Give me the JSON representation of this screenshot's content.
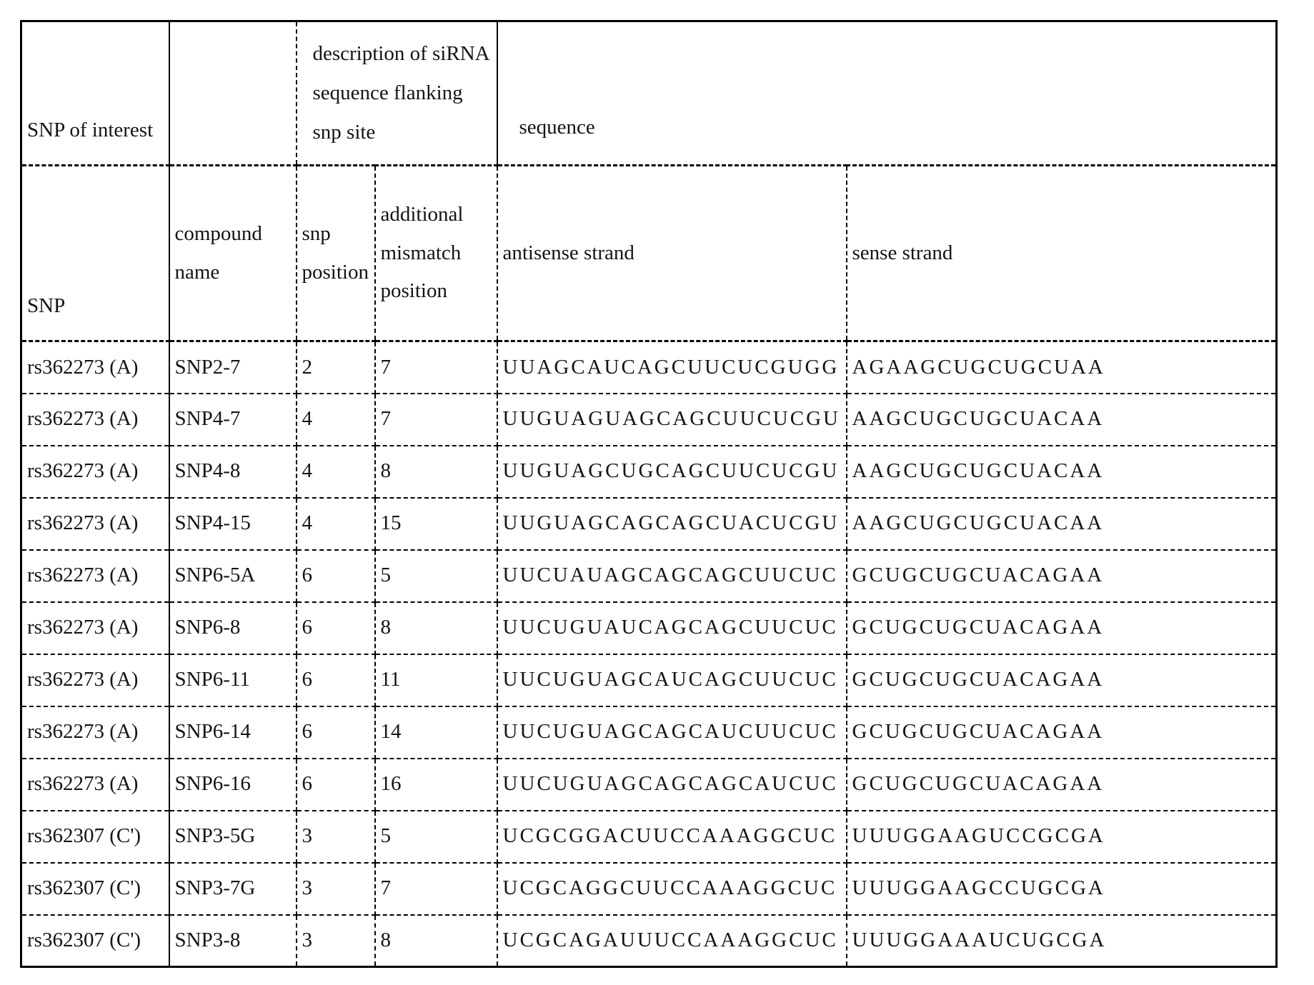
{
  "table": {
    "header_row1": {
      "snp_of_interest": "SNP of interest",
      "description": "description of siRNA sequence flanking snp site",
      "sequence": "sequence"
    },
    "header_row2": {
      "snp": "SNP",
      "compound_name": "compound name",
      "snp_position": "snp position",
      "additional_mismatch_position": "additional mismatch position",
      "antisense_strand": "antisense strand",
      "sense_strand": "sense strand"
    },
    "rows": [
      {
        "snp": "rs362273 (A)",
        "compound": "SNP2-7",
        "snp_pos": "2",
        "mismatch_pos": "7",
        "antisense": "UUAGCAUCAGCUUCUCGUGG",
        "sense": "AGAAGCUGCUGCUAA"
      },
      {
        "snp": "rs362273 (A)",
        "compound": "SNP4-7",
        "snp_pos": "4",
        "mismatch_pos": "7",
        "antisense": "UUGUAGUAGCAGCUUCUCGU",
        "sense": "AAGCUGCUGCUACAA"
      },
      {
        "snp": "rs362273 (A)",
        "compound": "SNP4-8",
        "snp_pos": "4",
        "mismatch_pos": "8",
        "antisense": "UUGUAGCUGCAGCUUCUCGU",
        "sense": "AAGCUGCUGCUACAA"
      },
      {
        "snp": "rs362273 (A)",
        "compound": "SNP4-15",
        "snp_pos": "4",
        "mismatch_pos": "15",
        "antisense": "UUGUAGCAGCAGCUACUCGU",
        "sense": "AAGCUGCUGCUACAA"
      },
      {
        "snp": "rs362273 (A)",
        "compound": "SNP6-5A",
        "snp_pos": "6",
        "mismatch_pos": "5",
        "antisense": "UUCUAUAGCAGCAGCUUCUC",
        "sense": "GCUGCUGCUACAGAA"
      },
      {
        "snp": "rs362273 (A)",
        "compound": "SNP6-8",
        "snp_pos": "6",
        "mismatch_pos": "8",
        "antisense": "UUCUGUAUCAGCAGCUUCUC",
        "sense": "GCUGCUGCUACAGAA"
      },
      {
        "snp": "rs362273 (A)",
        "compound": "SNP6-11",
        "snp_pos": "6",
        "mismatch_pos": "11",
        "antisense": "UUCUGUAGCAUCAGCUUCUC",
        "sense": "GCUGCUGCUACAGAA"
      },
      {
        "snp": "rs362273 (A)",
        "compound": "SNP6-14",
        "snp_pos": "6",
        "mismatch_pos": "14",
        "antisense": "UUCUGUAGCAGCAUCUUCUC",
        "sense": "GCUGCUGCUACAGAA"
      },
      {
        "snp": "rs362273 (A)",
        "compound": "SNP6-16",
        "snp_pos": "6",
        "mismatch_pos": "16",
        "antisense": "UUCUGUAGCAGCAGCAUCUC",
        "sense": "GCUGCUGCUACAGAA"
      },
      {
        "snp": "rs362307 (C')",
        "compound": "SNP3-5G",
        "snp_pos": "3",
        "mismatch_pos": "5",
        "antisense": "UCGCGGACUUCCAAAGGCUC",
        "sense": "UUUGGAAGUCCGCGA"
      },
      {
        "snp": "rs362307 (C')",
        "compound": "SNP3-7G",
        "snp_pos": "3",
        "mismatch_pos": "7",
        "antisense": "UCGCAGGCUUCCAAAGGCUC",
        "sense": "UUUGGAAGCCUGCGA"
      },
      {
        "snp": "rs362307 (C')",
        "compound": "SNP3-8",
        "snp_pos": "3",
        "mismatch_pos": "8",
        "antisense": "UCGCAGAUUUCCAAAGGCUC",
        "sense": "UUUGGAAAUCUGCGA"
      }
    ]
  }
}
